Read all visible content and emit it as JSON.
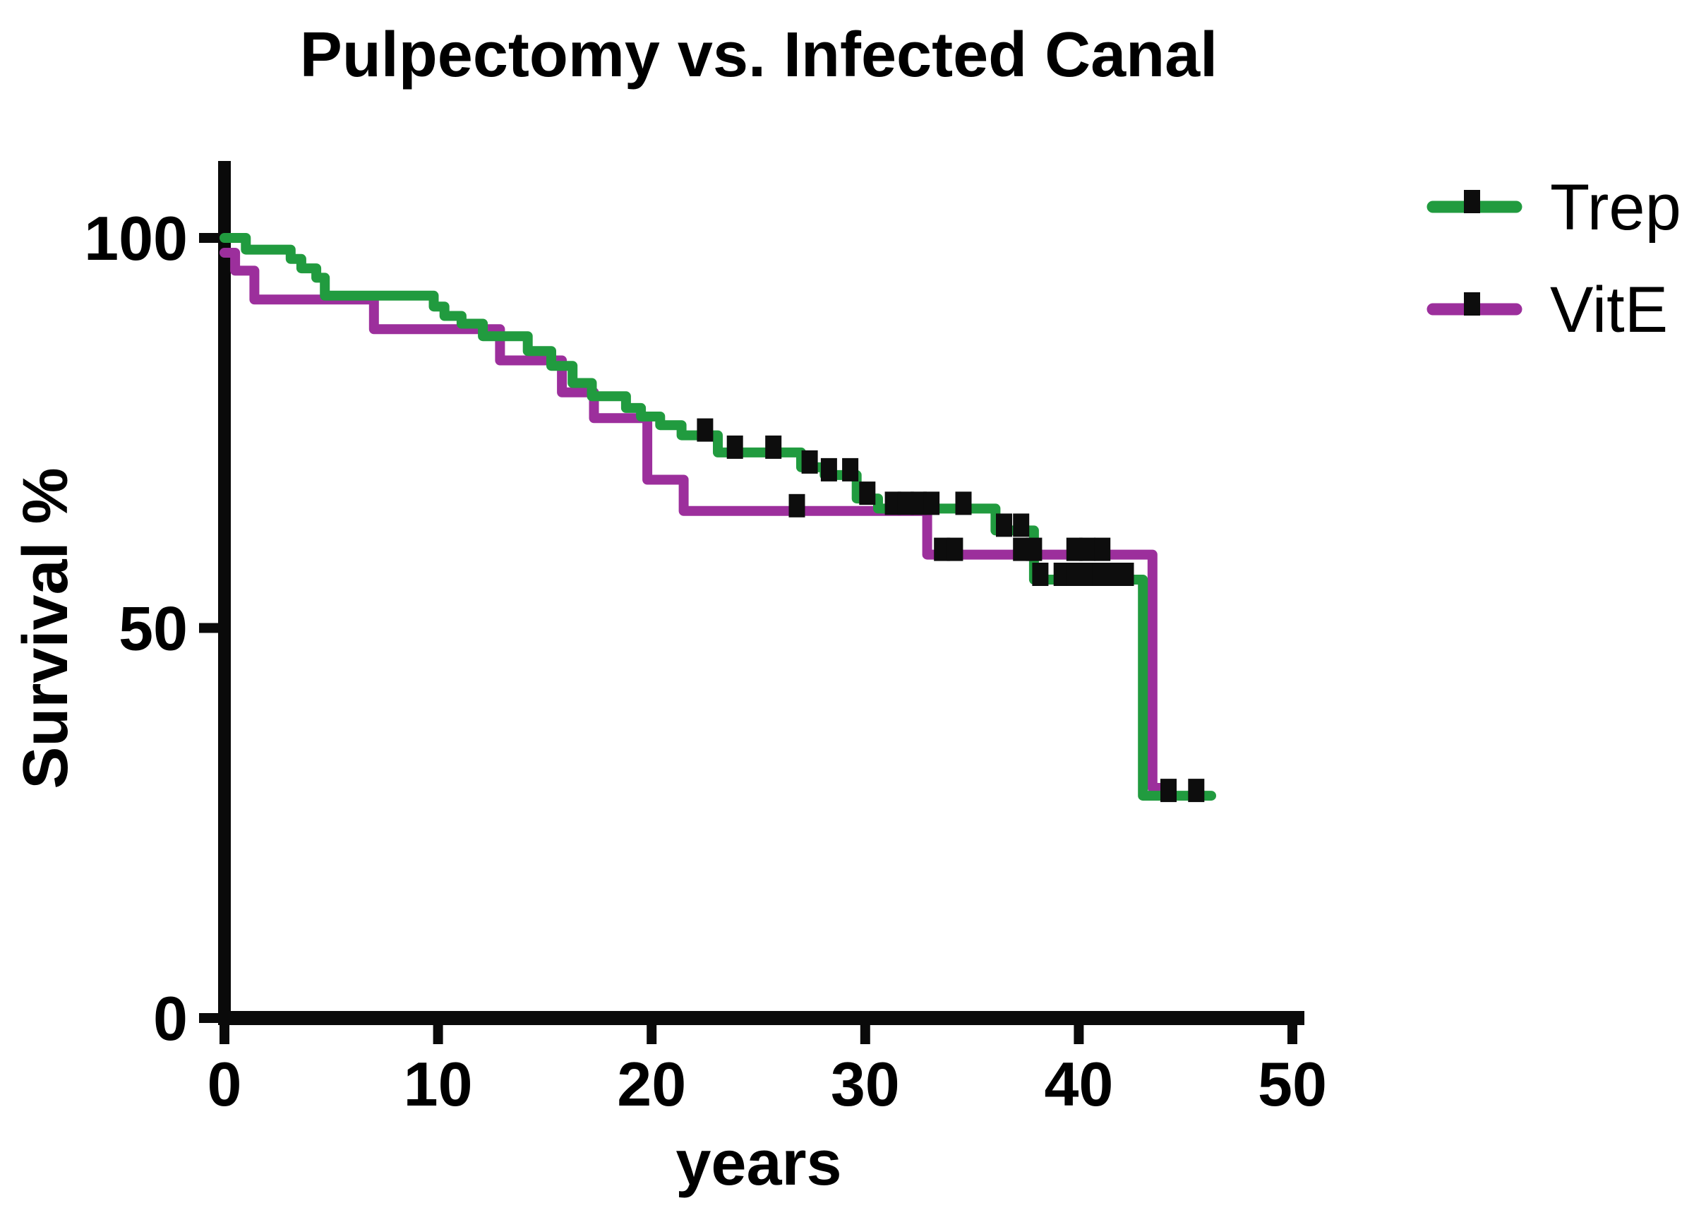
{
  "title": "Pulpectomy vs. Infected Canal",
  "axes": {
    "x": {
      "label": "years",
      "ticks": [
        0,
        10,
        20,
        30,
        40,
        50
      ],
      "tick_labels": [
        "0",
        "10",
        "20",
        "30",
        "40",
        "50"
      ],
      "range": [
        0,
        50
      ]
    },
    "y": {
      "label": "Survival %",
      "ticks": [
        100,
        50,
        0
      ],
      "tick_labels": [
        "100",
        "50",
        "0"
      ],
      "range": [
        0,
        100
      ]
    }
  },
  "colors": {
    "trep_green": "#219b3f",
    "vite_purple": "#9c2f9c",
    "axis_black": "#0a0a0a",
    "censor_black": "#0d0d0d",
    "background": "#ffffff"
  },
  "chart_data": {
    "type": "line",
    "subtype": "kaplan-meier-step",
    "title": "Pulpectomy vs. Infected Canal",
    "xlabel": "years",
    "ylabel": "Survival %",
    "xlim": [
      0,
      50
    ],
    "ylim": [
      0,
      100
    ],
    "grid": false,
    "legend_position": "right",
    "series": [
      {
        "name": "Trep",
        "color": "#219b3f",
        "steps": [
          [
            0,
            100
          ],
          [
            1.0,
            98.5
          ],
          [
            3.1,
            97.3
          ],
          [
            3.6,
            96.1
          ],
          [
            4.3,
            94.9
          ],
          [
            4.7,
            92.6
          ],
          [
            9.8,
            91.2
          ],
          [
            10.3,
            90.0
          ],
          [
            11.1,
            89.0
          ],
          [
            12.1,
            87.4
          ],
          [
            14.2,
            85.5
          ],
          [
            15.3,
            83.6
          ],
          [
            16.3,
            81.4
          ],
          [
            17.2,
            79.7
          ],
          [
            18.8,
            78.2
          ],
          [
            19.5,
            77.1
          ],
          [
            20.4,
            76.0
          ],
          [
            21.4,
            74.7
          ],
          [
            23.1,
            72.5
          ],
          [
            27.0,
            70.6
          ],
          [
            28.1,
            69.6
          ],
          [
            29.6,
            66.6
          ],
          [
            30.6,
            65.3
          ],
          [
            36.1,
            62.5
          ],
          [
            37.9,
            56.2
          ],
          [
            43.0,
            28.5
          ]
        ],
        "end_t": 46.2,
        "censor_marks": [
          [
            22.5,
            74.7
          ],
          [
            23.9,
            72.5
          ],
          [
            25.7,
            72.5
          ],
          [
            27.4,
            70.6
          ],
          [
            28.3,
            69.6
          ],
          [
            29.3,
            69.6
          ],
          [
            30.1,
            66.6
          ],
          [
            31.3,
            65.3
          ],
          [
            31.9,
            65.3
          ],
          [
            32.5,
            65.3
          ],
          [
            33.1,
            65.3
          ],
          [
            34.6,
            65.3
          ],
          [
            36.5,
            62.5
          ],
          [
            37.3,
            62.5
          ],
          [
            38.2,
            56.2
          ],
          [
            39.2,
            56.2
          ],
          [
            39.8,
            56.2
          ],
          [
            40.4,
            56.2
          ],
          [
            41.0,
            56.2
          ],
          [
            41.6,
            56.2
          ],
          [
            42.2,
            56.2
          ],
          [
            44.2,
            28.5
          ],
          [
            45.5,
            28.5
          ]
        ]
      },
      {
        "name": "VitE",
        "color": "#9c2f9c",
        "steps": [
          [
            0,
            98.1
          ],
          [
            0.5,
            95.8
          ],
          [
            1.4,
            92.1
          ],
          [
            7.0,
            88.3
          ],
          [
            12.9,
            84.3
          ],
          [
            15.8,
            80.2
          ],
          [
            17.3,
            76.9
          ],
          [
            19.8,
            69.0
          ],
          [
            21.5,
            65.0
          ],
          [
            32.9,
            59.4
          ],
          [
            43.45,
            29.5
          ]
        ],
        "end_t": 44.2,
        "censor_marks": [
          [
            26.8,
            65.0
          ],
          [
            33.6,
            59.4
          ],
          [
            34.2,
            59.4
          ],
          [
            37.3,
            59.4
          ],
          [
            37.9,
            59.4
          ],
          [
            39.8,
            59.4
          ],
          [
            40.4,
            59.4
          ],
          [
            41.1,
            59.4
          ]
        ]
      }
    ]
  }
}
